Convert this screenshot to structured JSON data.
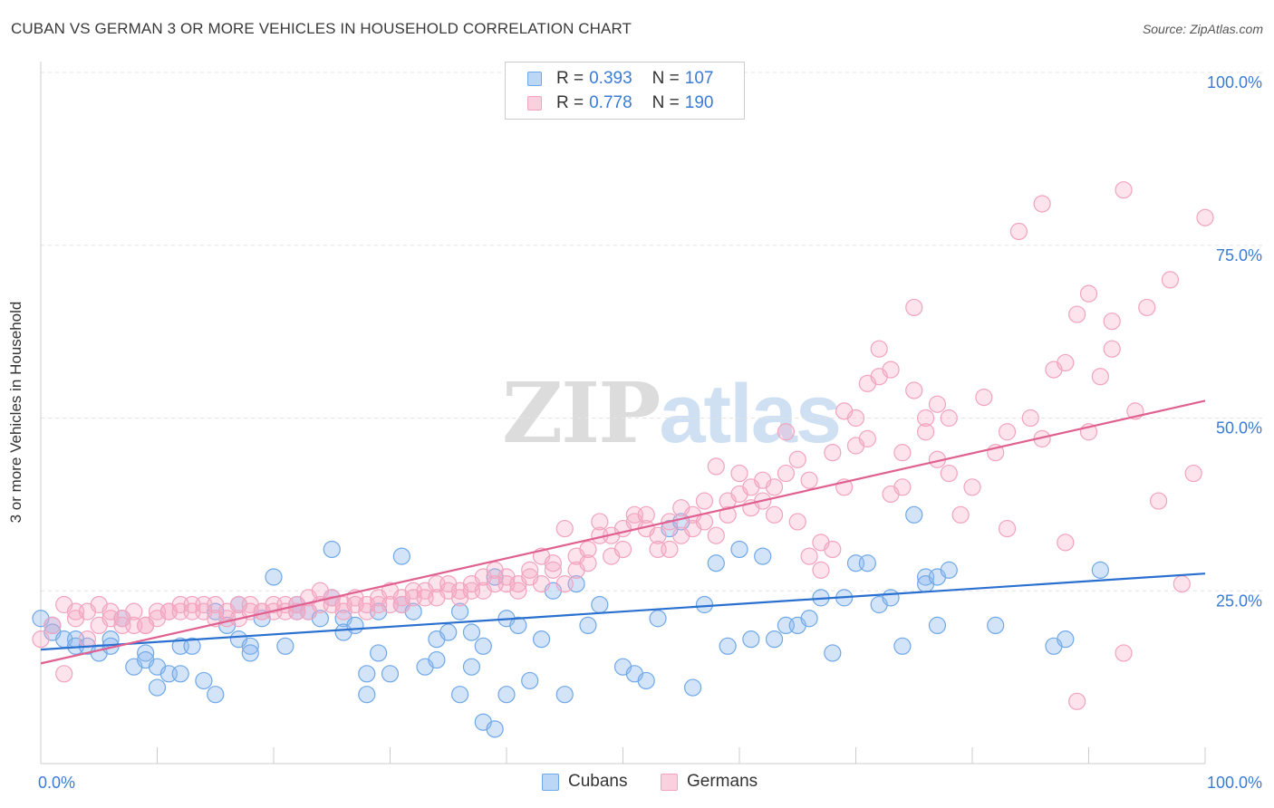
{
  "title": "CUBAN VS GERMAN 3 OR MORE VEHICLES IN HOUSEHOLD CORRELATION CHART",
  "source": "Source: ZipAtlas.com",
  "watermark": {
    "zip": "ZIP",
    "atlas": "atlas"
  },
  "legend": {
    "rows": [
      {
        "r_label": "R =",
        "r_value": "0.393",
        "n_label": "N =",
        "n_value": "107"
      },
      {
        "r_label": "R =",
        "r_value": "0.778",
        "n_label": "N =",
        "n_value": "190"
      }
    ]
  },
  "bottom_legend": [
    "Cubans",
    "Germans"
  ],
  "chart_data": {
    "type": "scatter",
    "title": "CUBAN VS GERMAN 3 OR MORE VEHICLES IN HOUSEHOLD CORRELATION CHART",
    "ylabel": "3 or more Vehicles in Household",
    "xlim": [
      0,
      100
    ],
    "ylim": [
      0,
      100
    ],
    "x_tick_labels": [
      "0.0%",
      "100.0%"
    ],
    "y_tick_labels": [
      "25.0%",
      "50.0%",
      "75.0%",
      "100.0%"
    ],
    "y_ticks": [
      25,
      50,
      75,
      100
    ],
    "grid": true,
    "colors": {
      "cubans": "#6fa8e8",
      "germans": "#f2a3bd",
      "cubans_line": "#2a70d0",
      "germans_line": "#e06090",
      "tick_label": "#3a7bd5"
    },
    "series": [
      {
        "name": "Cubans",
        "r": 0.393,
        "n": 107,
        "trend": {
          "x": [
            0,
            100
          ],
          "y": [
            16.5,
            27.5
          ]
        },
        "points": [
          [
            0,
            21
          ],
          [
            1,
            20
          ],
          [
            1,
            19
          ],
          [
            2,
            18
          ],
          [
            3,
            18
          ],
          [
            3,
            17
          ],
          [
            4,
            17
          ],
          [
            5,
            16
          ],
          [
            6,
            18
          ],
          [
            6,
            17
          ],
          [
            7,
            21
          ],
          [
            8,
            14
          ],
          [
            9,
            16
          ],
          [
            9,
            15
          ],
          [
            10,
            11
          ],
          [
            10,
            14
          ],
          [
            11,
            13
          ],
          [
            12,
            13
          ],
          [
            12,
            17
          ],
          [
            13,
            17
          ],
          [
            14,
            12
          ],
          [
            15,
            10
          ],
          [
            15,
            22
          ],
          [
            16,
            20
          ],
          [
            17,
            23
          ],
          [
            17,
            18
          ],
          [
            18,
            17
          ],
          [
            18,
            16
          ],
          [
            19,
            21
          ],
          [
            20,
            27
          ],
          [
            21,
            17
          ],
          [
            22,
            22
          ],
          [
            22,
            23
          ],
          [
            23,
            22
          ],
          [
            24,
            21
          ],
          [
            25,
            31
          ],
          [
            25,
            24
          ],
          [
            26,
            21
          ],
          [
            26,
            19
          ],
          [
            27,
            20
          ],
          [
            28,
            13
          ],
          [
            28,
            10
          ],
          [
            29,
            22
          ],
          [
            29,
            16
          ],
          [
            30,
            13
          ],
          [
            31,
            23
          ],
          [
            31,
            30
          ],
          [
            32,
            22
          ],
          [
            33,
            14
          ],
          [
            34,
            15
          ],
          [
            34,
            18
          ],
          [
            35,
            19
          ],
          [
            36,
            22
          ],
          [
            36,
            10
          ],
          [
            37,
            14
          ],
          [
            37,
            19
          ],
          [
            38,
            17
          ],
          [
            38,
            6
          ],
          [
            39,
            5
          ],
          [
            39,
            27
          ],
          [
            40,
            21
          ],
          [
            40,
            10
          ],
          [
            41,
            20
          ],
          [
            42,
            12
          ],
          [
            43,
            18
          ],
          [
            44,
            25
          ],
          [
            45,
            10
          ],
          [
            46,
            26
          ],
          [
            47,
            20
          ],
          [
            48,
            23
          ],
          [
            50,
            14
          ],
          [
            51,
            13
          ],
          [
            52,
            12
          ],
          [
            53,
            21
          ],
          [
            54,
            34
          ],
          [
            55,
            35
          ],
          [
            56,
            11
          ],
          [
            57,
            23
          ],
          [
            58,
            29
          ],
          [
            59,
            17
          ],
          [
            60,
            31
          ],
          [
            61,
            18
          ],
          [
            62,
            30
          ],
          [
            63,
            18
          ],
          [
            64,
            20
          ],
          [
            65,
            20
          ],
          [
            66,
            21
          ],
          [
            67,
            24
          ],
          [
            68,
            16
          ],
          [
            69,
            24
          ],
          [
            70,
            29
          ],
          [
            71,
            29
          ],
          [
            72,
            23
          ],
          [
            73,
            24
          ],
          [
            74,
            17
          ],
          [
            75,
            36
          ],
          [
            76,
            27
          ],
          [
            76,
            26
          ],
          [
            77,
            27
          ],
          [
            77,
            20
          ],
          [
            78,
            28
          ],
          [
            82,
            20
          ],
          [
            87,
            17
          ],
          [
            88,
            18
          ],
          [
            91,
            28
          ]
        ]
      },
      {
        "name": "Germans",
        "r": 0.778,
        "n": 190,
        "trend": {
          "x": [
            0,
            100
          ],
          "y": [
            14.5,
            52.5
          ]
        },
        "points": [
          [
            0,
            18
          ],
          [
            1,
            20
          ],
          [
            2,
            13
          ],
          [
            2,
            23
          ],
          [
            3,
            21
          ],
          [
            3,
            22
          ],
          [
            4,
            22
          ],
          [
            4,
            18
          ],
          [
            5,
            23
          ],
          [
            5,
            20
          ],
          [
            6,
            21
          ],
          [
            6,
            22
          ],
          [
            7,
            21
          ],
          [
            7,
            20
          ],
          [
            8,
            20
          ],
          [
            8,
            22
          ],
          [
            9,
            20
          ],
          [
            9,
            20
          ],
          [
            10,
            22
          ],
          [
            10,
            21
          ],
          [
            11,
            22
          ],
          [
            11,
            22
          ],
          [
            12,
            23
          ],
          [
            12,
            22
          ],
          [
            13,
            23
          ],
          [
            13,
            22
          ],
          [
            14,
            22
          ],
          [
            14,
            23
          ],
          [
            15,
            23
          ],
          [
            15,
            21
          ],
          [
            16,
            21
          ],
          [
            16,
            22
          ],
          [
            17,
            21
          ],
          [
            17,
            23
          ],
          [
            18,
            23
          ],
          [
            18,
            22
          ],
          [
            19,
            22
          ],
          [
            19,
            22
          ],
          [
            20,
            23
          ],
          [
            20,
            22
          ],
          [
            21,
            23
          ],
          [
            21,
            22
          ],
          [
            22,
            23
          ],
          [
            22,
            22
          ],
          [
            23,
            24
          ],
          [
            23,
            22
          ],
          [
            24,
            23
          ],
          [
            24,
            25
          ],
          [
            25,
            23
          ],
          [
            25,
            24
          ],
          [
            26,
            23
          ],
          [
            26,
            22
          ],
          [
            27,
            24
          ],
          [
            27,
            23
          ],
          [
            28,
            22
          ],
          [
            28,
            23
          ],
          [
            29,
            23
          ],
          [
            29,
            24
          ],
          [
            30,
            25
          ],
          [
            30,
            23
          ],
          [
            31,
            24
          ],
          [
            31,
            23
          ],
          [
            32,
            25
          ],
          [
            32,
            24
          ],
          [
            33,
            25
          ],
          [
            33,
            24
          ],
          [
            34,
            26
          ],
          [
            34,
            24
          ],
          [
            35,
            25
          ],
          [
            35,
            26
          ],
          [
            36,
            24
          ],
          [
            36,
            25
          ],
          [
            37,
            26
          ],
          [
            37,
            25
          ],
          [
            38,
            25
          ],
          [
            38,
            27
          ],
          [
            39,
            26
          ],
          [
            39,
            28
          ],
          [
            40,
            27
          ],
          [
            40,
            26
          ],
          [
            41,
            26
          ],
          [
            41,
            25
          ],
          [
            42,
            27
          ],
          [
            42,
            28
          ],
          [
            43,
            26
          ],
          [
            43,
            30
          ],
          [
            44,
            28
          ],
          [
            44,
            29
          ],
          [
            45,
            34
          ],
          [
            45,
            26
          ],
          [
            46,
            30
          ],
          [
            46,
            28
          ],
          [
            47,
            29
          ],
          [
            47,
            31
          ],
          [
            48,
            33
          ],
          [
            48,
            35
          ],
          [
            49,
            30
          ],
          [
            49,
            33
          ],
          [
            50,
            31
          ],
          [
            50,
            34
          ],
          [
            51,
            36
          ],
          [
            51,
            35
          ],
          [
            52,
            34
          ],
          [
            52,
            36
          ],
          [
            53,
            33
          ],
          [
            53,
            31
          ],
          [
            54,
            35
          ],
          [
            54,
            31
          ],
          [
            55,
            37
          ],
          [
            55,
            33
          ],
          [
            56,
            36
          ],
          [
            56,
            34
          ],
          [
            57,
            35
          ],
          [
            57,
            38
          ],
          [
            58,
            43
          ],
          [
            58,
            33
          ],
          [
            59,
            38
          ],
          [
            59,
            36
          ],
          [
            60,
            39
          ],
          [
            60,
            42
          ],
          [
            61,
            40
          ],
          [
            61,
            37
          ],
          [
            62,
            41
          ],
          [
            62,
            38
          ],
          [
            63,
            36
          ],
          [
            63,
            40
          ],
          [
            64,
            48
          ],
          [
            64,
            42
          ],
          [
            65,
            44
          ],
          [
            65,
            35
          ],
          [
            66,
            41
          ],
          [
            66,
            30
          ],
          [
            67,
            32
          ],
          [
            67,
            28
          ],
          [
            68,
            31
          ],
          [
            68,
            45
          ],
          [
            69,
            40
          ],
          [
            69,
            51
          ],
          [
            70,
            50
          ],
          [
            70,
            46
          ],
          [
            71,
            47
          ],
          [
            71,
            55
          ],
          [
            72,
            56
          ],
          [
            72,
            60
          ],
          [
            73,
            57
          ],
          [
            73,
            39
          ],
          [
            74,
            45
          ],
          [
            74,
            40
          ],
          [
            75,
            66
          ],
          [
            75,
            54
          ],
          [
            76,
            48
          ],
          [
            76,
            50
          ],
          [
            77,
            44
          ],
          [
            77,
            52
          ],
          [
            78,
            50
          ],
          [
            78,
            42
          ],
          [
            79,
            36
          ],
          [
            80,
            40
          ],
          [
            81,
            53
          ],
          [
            82,
            45
          ],
          [
            83,
            48
          ],
          [
            83,
            34
          ],
          [
            84,
            77
          ],
          [
            85,
            50
          ],
          [
            86,
            81
          ],
          [
            86,
            47
          ],
          [
            87,
            57
          ],
          [
            88,
            58
          ],
          [
            88,
            32
          ],
          [
            89,
            65
          ],
          [
            89,
            9
          ],
          [
            90,
            48
          ],
          [
            90,
            68
          ],
          [
            91,
            56
          ],
          [
            92,
            64
          ],
          [
            92,
            60
          ],
          [
            93,
            83
          ],
          [
            93,
            16
          ],
          [
            94,
            51
          ],
          [
            95,
            66
          ],
          [
            96,
            38
          ],
          [
            97,
            70
          ],
          [
            98,
            26
          ],
          [
            99,
            42
          ],
          [
            100,
            79
          ]
        ]
      }
    ]
  }
}
